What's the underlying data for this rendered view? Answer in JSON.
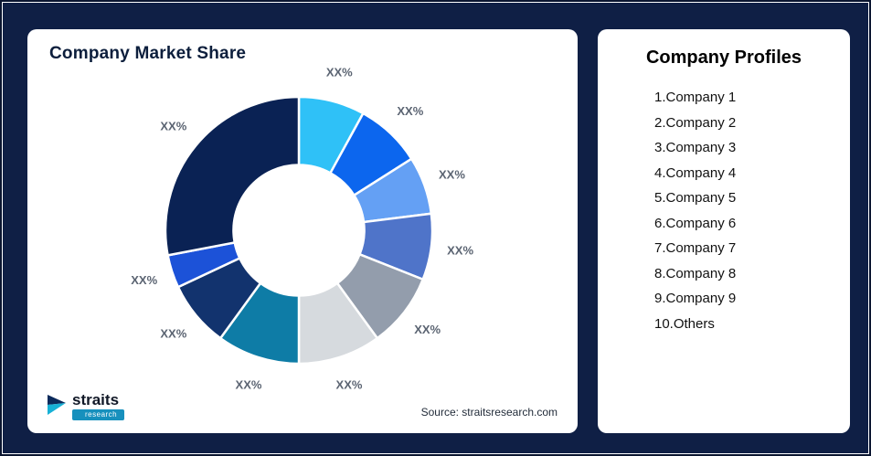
{
  "background_color": "#0f1f45",
  "left_card": {
    "title": "Company Market Share",
    "source": "Source: straitsresearch.com",
    "logo": {
      "name": "straits",
      "sub": "research"
    }
  },
  "right_card": {
    "title": "Company Profiles",
    "items": [
      "1.Company 1",
      "2.Company 2",
      "3.Company 3",
      "4.Company 4",
      "5.Company 5",
      "6.Company 6",
      "7.Company 7",
      "8.Company 8",
      "9.Company 9",
      "10.Others"
    ]
  },
  "chart_data": {
    "type": "pie",
    "subtype": "donut",
    "title": "Company Market Share",
    "start_angle_deg": 0,
    "inner_radius_ratio": 0.49,
    "note": "All slice data labels show placeholder XX%; values below are estimated from arc angles",
    "segments": [
      {
        "name": "Company 1",
        "label": "XX%",
        "value": 8,
        "color": "#2fc1f7"
      },
      {
        "name": "Company 2",
        "label": "XX%",
        "value": 8,
        "color": "#0c66ee"
      },
      {
        "name": "Company 3",
        "label": "XX%",
        "value": 7,
        "color": "#64a0f4"
      },
      {
        "name": "Company 4",
        "label": "XX%",
        "value": 8,
        "color": "#4f74c9"
      },
      {
        "name": "Company 5",
        "label": "XX%",
        "value": 9,
        "color": "#939dac"
      },
      {
        "name": "Company 6",
        "label": "XX%",
        "value": 10,
        "color": "#d6dade"
      },
      {
        "name": "Company 7",
        "label": "XX%",
        "value": 10,
        "color": "#0e7ca6"
      },
      {
        "name": "Company 8",
        "label": "XX%",
        "value": 8,
        "color": "#12336e"
      },
      {
        "name": "Company 9",
        "label": "XX%",
        "value": 4,
        "color": "#1c52d8"
      },
      {
        "name": "Others",
        "label": "XX%",
        "value": 28,
        "color": "#0a2254"
      }
    ]
  }
}
